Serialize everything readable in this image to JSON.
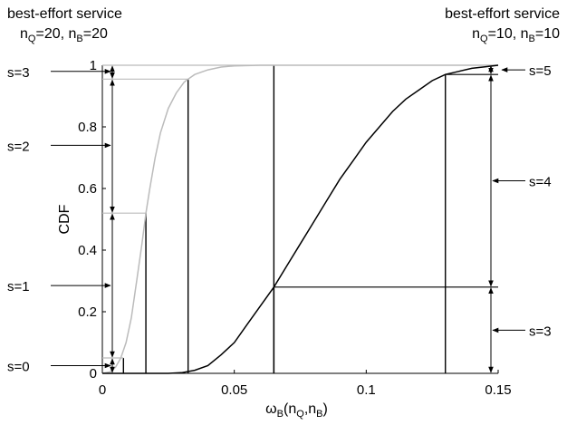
{
  "chart_data": {
    "type": "line",
    "xlabel": {
      "base": "ω",
      "sub1": "B",
      "mid": "(n",
      "sub2": "Q",
      "comma": ",n",
      "sub3": "B",
      "end": ")"
    },
    "ylabel": "CDF",
    "xlim": [
      0,
      0.15
    ],
    "ylim": [
      0,
      1
    ],
    "xticks": [
      {
        "v": 0,
        "label": "0"
      },
      {
        "v": 0.05,
        "label": "0.05"
      },
      {
        "v": 0.1,
        "label": "0.1"
      },
      {
        "v": 0.15,
        "label": "0.15"
      }
    ],
    "yticks": [
      {
        "v": 0,
        "label": "0"
      },
      {
        "v": 0.2,
        "label": "0.2"
      },
      {
        "v": 0.4,
        "label": "0.4"
      },
      {
        "v": 0.6,
        "label": "0.6"
      },
      {
        "v": 0.8,
        "label": "0.8"
      },
      {
        "v": 1,
        "label": "1"
      }
    ],
    "headers": [
      {
        "title": "best-effort service",
        "line2": {
          "a": "n",
          "sa": "Q",
          "b": "=20, n",
          "sb": "B",
          "c": "=20"
        }
      },
      {
        "title": "best-effort service",
        "line2": {
          "a": "n",
          "sa": "Q",
          "b": "=10, n",
          "sb": "B",
          "c": "=10"
        }
      }
    ],
    "series": [
      {
        "color": "#bbbbbb",
        "points": [
          [
            0,
            0
          ],
          [
            0.003,
            0.005
          ],
          [
            0.005,
            0.02
          ],
          [
            0.007,
            0.05
          ],
          [
            0.009,
            0.1
          ],
          [
            0.011,
            0.18
          ],
          [
            0.013,
            0.3
          ],
          [
            0.015,
            0.42
          ],
          [
            0.0165,
            0.52
          ],
          [
            0.018,
            0.6
          ],
          [
            0.02,
            0.7
          ],
          [
            0.022,
            0.78
          ],
          [
            0.025,
            0.86
          ],
          [
            0.028,
            0.91
          ],
          [
            0.031,
            0.945
          ],
          [
            0.0325,
            0.955
          ],
          [
            0.035,
            0.97
          ],
          [
            0.04,
            0.985
          ],
          [
            0.045,
            0.994
          ],
          [
            0.05,
            0.998
          ],
          [
            0.06,
            1
          ],
          [
            0.15,
            1
          ]
        ]
      },
      {
        "color": "#000000",
        "points": [
          [
            0,
            0
          ],
          [
            0.025,
            0
          ],
          [
            0.03,
            0.002
          ],
          [
            0.035,
            0.01
          ],
          [
            0.04,
            0.025
          ],
          [
            0.045,
            0.06
          ],
          [
            0.05,
            0.1
          ],
          [
            0.055,
            0.16
          ],
          [
            0.06,
            0.22
          ],
          [
            0.065,
            0.28
          ],
          [
            0.07,
            0.35
          ],
          [
            0.075,
            0.42
          ],
          [
            0.08,
            0.49
          ],
          [
            0.085,
            0.56
          ],
          [
            0.09,
            0.63
          ],
          [
            0.095,
            0.69
          ],
          [
            0.1,
            0.75
          ],
          [
            0.105,
            0.8
          ],
          [
            0.11,
            0.85
          ],
          [
            0.115,
            0.89
          ],
          [
            0.12,
            0.92
          ],
          [
            0.125,
            0.95
          ],
          [
            0.13,
            0.97
          ],
          [
            0.135,
            0.98
          ],
          [
            0.14,
            0.99
          ],
          [
            0.145,
            0.995
          ],
          [
            0.15,
            1
          ]
        ]
      }
    ],
    "left_steps": [
      {
        "x": 0.008,
        "y": 0.05
      },
      {
        "x": 0.0165,
        "y": 0.52
      },
      {
        "x": 0.0325,
        "y": 0.955
      },
      {
        "x": 0.065,
        "y": 1
      }
    ],
    "right_steps": [
      {
        "x": 0.065,
        "y": 0.28
      },
      {
        "x": 0.13,
        "y": 0.97
      }
    ],
    "left_brackets": [
      [
        0,
        0.05
      ],
      [
        0.05,
        0.52
      ],
      [
        0.52,
        0.955
      ],
      [
        0.955,
        1
      ]
    ],
    "right_brackets": [
      [
        0,
        0.28
      ],
      [
        0.28,
        0.97
      ],
      [
        0.97,
        1
      ]
    ],
    "left_labels": [
      {
        "text": "s=0",
        "y": 0.025
      },
      {
        "text": "s=1",
        "y": 0.285
      },
      {
        "text": "s=2",
        "y": 0.74
      },
      {
        "text": "s=3",
        "y": 0.98
      }
    ],
    "right_labels": [
      {
        "text": "s=3",
        "y": 0.14
      },
      {
        "text": "s=4",
        "y": 0.625
      },
      {
        "text": "s=5",
        "y": 0.985
      }
    ]
  }
}
